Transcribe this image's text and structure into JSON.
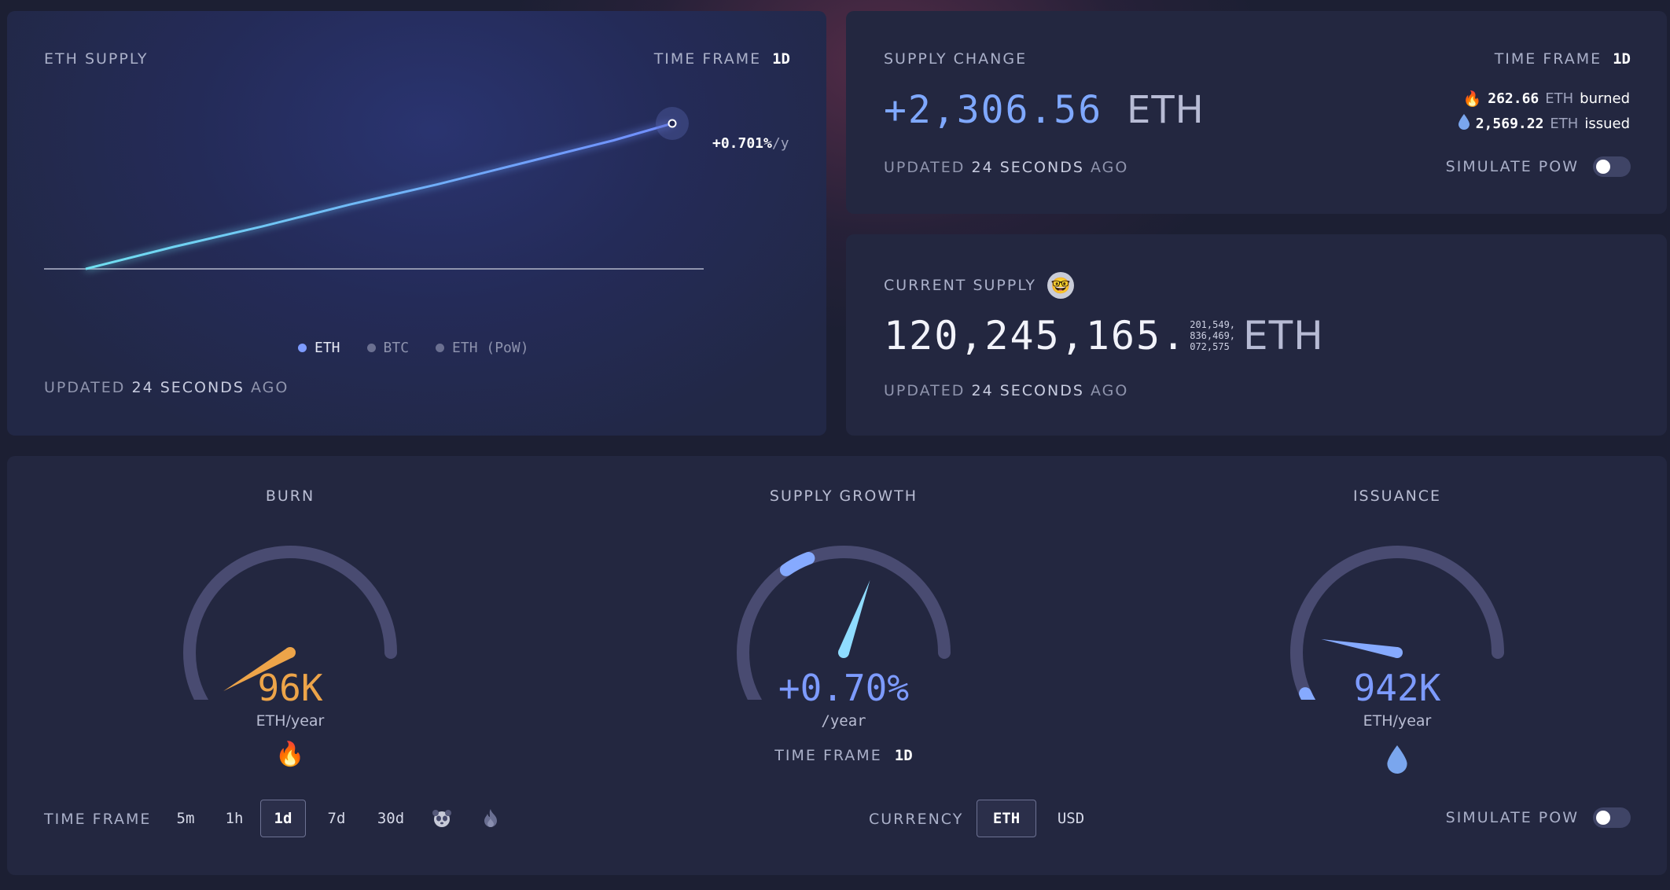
{
  "eth_supply": {
    "title": "ETH SUPPLY",
    "timeframe_label": "TIME FRAME",
    "timeframe_value": "1d",
    "endpoint_label": "+0.701%",
    "endpoint_suffix": "/y",
    "legend": [
      {
        "label": "ETH",
        "active": true
      },
      {
        "label": "BTC",
        "active": false
      },
      {
        "label": "ETH (PoW)",
        "active": false
      }
    ],
    "updated_prefix": "UPDATED",
    "updated_value": "24 SECONDS",
    "updated_suffix": "AGO"
  },
  "chart_data": {
    "type": "line",
    "title": "ETH SUPPLY",
    "xlabel": "",
    "ylabel": "",
    "grid": false,
    "series": [
      {
        "name": "ETH",
        "x": [
          0,
          0.15,
          0.3,
          0.45,
          0.6,
          0.75,
          0.9,
          1.0
        ],
        "y": [
          0,
          0.13,
          0.25,
          0.38,
          0.5,
          0.63,
          0.76,
          0.86
        ]
      }
    ],
    "baseline": 0,
    "ylim": [
      0,
      1
    ]
  },
  "supply_change": {
    "title": "SUPPLY CHANGE",
    "timeframe_label": "TIME FRAME",
    "timeframe_value": "1d",
    "value": "+2,306.56",
    "unit": "ETH",
    "burned_value": "262.66",
    "burned_unit": "ETH",
    "burned_label": "burned",
    "issued_value": "2,569.22",
    "issued_unit": "ETH",
    "issued_label": "issued",
    "updated_prefix": "UPDATED",
    "updated_value": "24 SECONDS",
    "updated_suffix": "AGO",
    "simulate_label": "SIMULATE PoW",
    "simulate_on": false
  },
  "current_supply": {
    "title": "CURRENT SUPPLY",
    "integer": "120,245,165.",
    "decimals_line1": "201,549,",
    "decimals_line2": "836,469,",
    "decimals_line3": "072,575",
    "unit": "ETH",
    "updated_prefix": "UPDATED",
    "updated_value": "24 SECONDS",
    "updated_suffix": "AGO"
  },
  "gauges": {
    "burn": {
      "title": "BURN",
      "value": "96K",
      "unit": "ETH/year",
      "fraction": 0.05,
      "color": "#eda449"
    },
    "growth": {
      "title": "SUPPLY GROWTH",
      "value": "+0.70%",
      "unit": "/year",
      "fraction": 0.54,
      "color": "#7d9bff",
      "timeframe_label": "TIME FRAME",
      "timeframe_value": "1d"
    },
    "issuance": {
      "title": "ISSUANCE",
      "value": "942K",
      "unit": "ETH/year",
      "fraction": 0.15,
      "color": "#7d9bff"
    }
  },
  "controls": {
    "timeframe_label": "TIME FRAME",
    "timeframes": [
      "5m",
      "1h",
      "1d",
      "7d",
      "30d"
    ],
    "active_timeframe": "1d",
    "icons": [
      "panda-icon",
      "flame-icon"
    ],
    "currency_label": "CURRENCY",
    "currencies": [
      "ETH",
      "USD"
    ],
    "active_currency": "ETH",
    "simulate_label": "SIMULATE PoW",
    "simulate_on": false
  }
}
